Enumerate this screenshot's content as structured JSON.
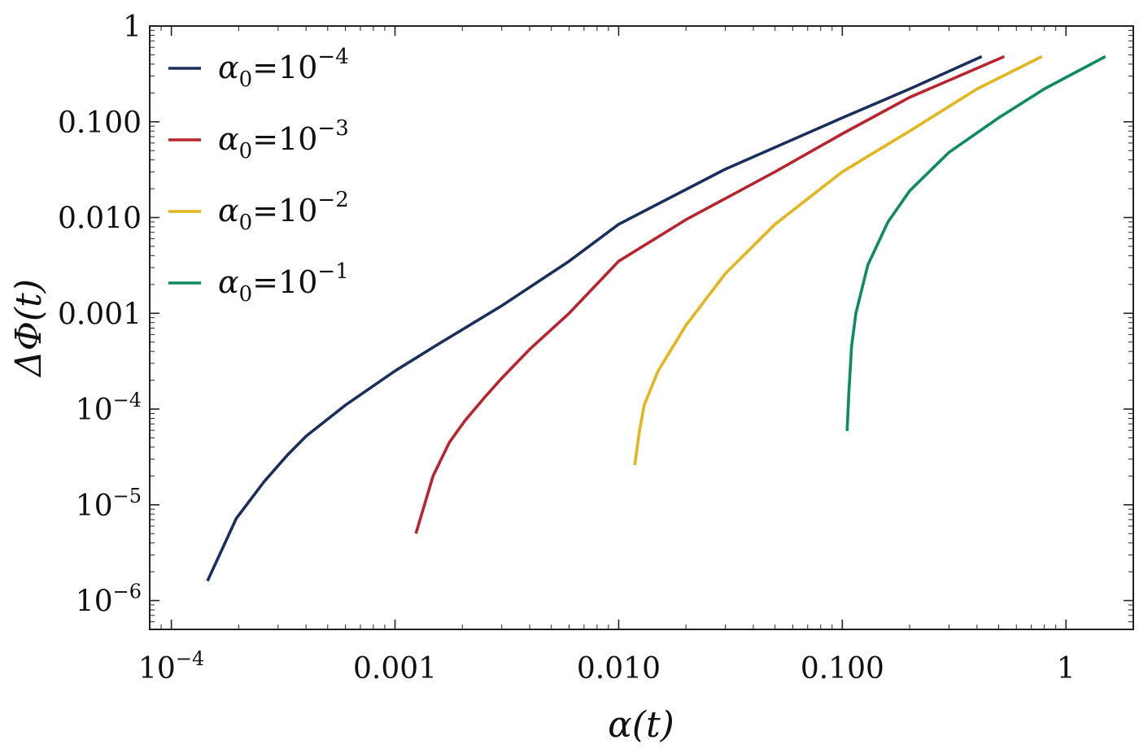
{
  "chart_data": {
    "type": "line",
    "xscale": "log",
    "yscale": "log",
    "xlim": [
      8e-05,
      2.0
    ],
    "ylim": [
      5e-07,
      1.0
    ],
    "xlabel": "α(t)",
    "ylabel": "ΔΦ(t)",
    "x_ticks": [
      {
        "value": 0.0001,
        "base": "10",
        "exp": "−4"
      },
      {
        "value": 0.001,
        "label": "0.001"
      },
      {
        "value": 0.01,
        "label": "0.010"
      },
      {
        "value": 0.1,
        "label": "0.100"
      },
      {
        "value": 1,
        "label": "1"
      }
    ],
    "y_ticks": [
      {
        "value": 1e-06,
        "base": "10",
        "exp": "−6"
      },
      {
        "value": 1e-05,
        "base": "10",
        "exp": "−5"
      },
      {
        "value": 0.0001,
        "base": "10",
        "exp": "−4"
      },
      {
        "value": 0.001,
        "label": "0.001"
      },
      {
        "value": 0.01,
        "label": "0.010"
      },
      {
        "value": 0.1,
        "label": "0.100"
      },
      {
        "value": 1,
        "label": "1"
      }
    ],
    "legend": "top-left",
    "series": [
      {
        "name": "α0=10−4",
        "name_parts": {
          "symbol": "α",
          "sub": "0",
          "eq": "=10",
          "exp": "−4"
        },
        "color": "#1b2e5c",
        "points": [
          [
            0.000145,
            1.6e-06
          ],
          [
            0.000195,
            7.2e-06
          ],
          [
            0.00026,
            1.75e-05
          ],
          [
            0.00033,
            3.3e-05
          ],
          [
            0.0004,
            5.2e-05
          ],
          [
            0.0006,
            0.00011
          ],
          [
            0.001,
            0.00025
          ],
          [
            0.0015,
            0.00045
          ],
          [
            0.003,
            0.0012
          ],
          [
            0.006,
            0.0035
          ],
          [
            0.01,
            0.0085
          ],
          [
            0.03,
            0.032
          ],
          [
            0.1,
            0.11
          ],
          [
            0.2,
            0.22
          ],
          [
            0.42,
            0.48
          ]
        ]
      },
      {
        "name": "α0=10−3",
        "name_parts": {
          "symbol": "α",
          "sub": "0",
          "eq": "=10",
          "exp": "−3"
        },
        "color": "#b8252f",
        "points": [
          [
            0.00124,
            5e-06
          ],
          [
            0.00148,
            2e-05
          ],
          [
            0.00175,
            4.5e-05
          ],
          [
            0.00205,
            7.5e-05
          ],
          [
            0.0025,
            0.00013
          ],
          [
            0.003,
            0.00021
          ],
          [
            0.004,
            0.00042
          ],
          [
            0.006,
            0.001
          ],
          [
            0.01,
            0.0035
          ],
          [
            0.02,
            0.0095
          ],
          [
            0.05,
            0.03
          ],
          [
            0.1,
            0.075
          ],
          [
            0.2,
            0.18
          ],
          [
            0.53,
            0.48
          ]
        ]
      },
      {
        "name": "α0=10−2",
        "name_parts": {
          "symbol": "α",
          "sub": "0",
          "eq": "=10",
          "exp": "−2"
        },
        "color": "#e3b51f",
        "points": [
          [
            0.0118,
            2.6e-05
          ],
          [
            0.0124,
            6e-05
          ],
          [
            0.013,
            0.00011
          ],
          [
            0.015,
            0.00025
          ],
          [
            0.02,
            0.00075
          ],
          [
            0.03,
            0.0026
          ],
          [
            0.05,
            0.0085
          ],
          [
            0.1,
            0.03
          ],
          [
            0.2,
            0.08
          ],
          [
            0.4,
            0.22
          ],
          [
            0.78,
            0.48
          ]
        ]
      },
      {
        "name": "α0=10−1",
        "name_parts": {
          "symbol": "α",
          "sub": "0",
          "eq": "=10",
          "exp": "−1"
        },
        "color": "#0f8a62",
        "points": [
          [
            0.105,
            5.9e-05
          ],
          [
            0.107,
            0.00015
          ],
          [
            0.11,
            0.00045
          ],
          [
            0.115,
            0.001
          ],
          [
            0.13,
            0.0032
          ],
          [
            0.16,
            0.009
          ],
          [
            0.2,
            0.019
          ],
          [
            0.3,
            0.048
          ],
          [
            0.5,
            0.11
          ],
          [
            0.8,
            0.22
          ],
          [
            1.5,
            0.48
          ]
        ]
      }
    ]
  }
}
